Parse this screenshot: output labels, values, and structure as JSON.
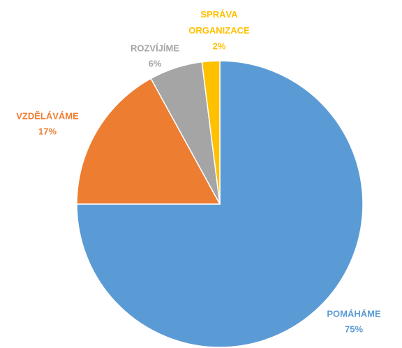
{
  "chart_data": {
    "type": "pie",
    "categories": [
      "POMÁHÁME",
      "VZDĚLÁVÁME",
      "ROZVÍJÍME",
      "SPRÁVA ORGANIZACE"
    ],
    "values": [
      75,
      17,
      6,
      2
    ],
    "value_labels": [
      "75%",
      "17%",
      "6%",
      "2%"
    ],
    "colors": [
      "#5b9bd5",
      "#ed7d31",
      "#a5a5a5",
      "#ffc000"
    ]
  }
}
